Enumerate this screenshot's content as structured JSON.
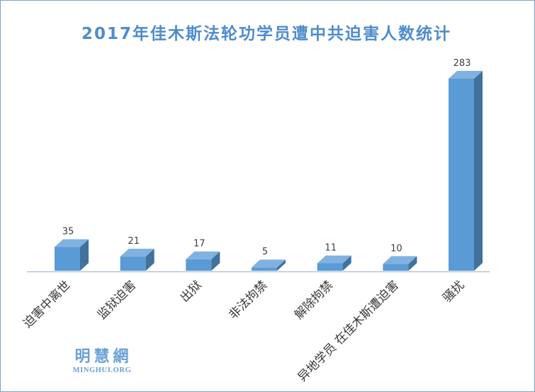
{
  "chart_data": {
    "type": "bar",
    "three_d": true,
    "title": "2017年佳木斯法轮功学员遭中共迫害人数统计",
    "xlabel": "",
    "ylabel": "",
    "categories": [
      "迫害中离世",
      "监狱迫害",
      "出狱",
      "非法拘禁",
      "解除拘禁",
      "异地学员 在佳木斯遭迫害",
      "骚扰"
    ],
    "values": [
      35,
      21,
      17,
      5,
      11,
      10,
      283
    ],
    "grid": false,
    "colors": {
      "bar_front": "#5b9bd5",
      "bar_top": "#7fb2e1",
      "bar_side": "#41719c",
      "title": "#4f8ccd",
      "axis": "#8fadcf"
    }
  },
  "logo": {
    "name": "明慧網",
    "site": "MINGHUI.ORG"
  }
}
